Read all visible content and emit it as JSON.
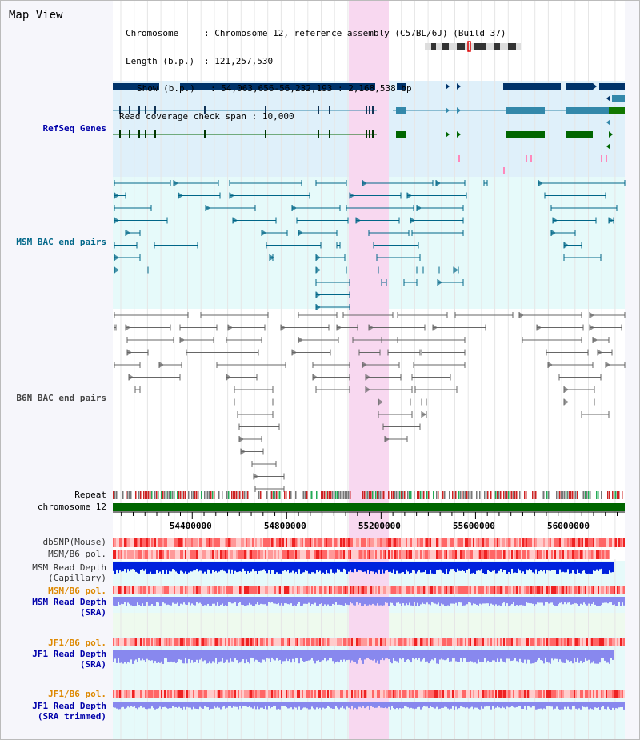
{
  "title": "Map View",
  "info": {
    "chromosome_label": "Chromosome",
    "chromosome_value": "Chromosome 12, reference assembly (C57BL/6J) (Build 37)",
    "length_label": "Length (b.p.)",
    "length_value": "121,257,530",
    "show_label": "Show (b.p.)",
    "show_value": "54,063,656-56,232,193 : 2,168,538 bp",
    "coverage_label": "Read coverage check span",
    "coverage_value": "10,000"
  },
  "tracks": {
    "refseq": "RefSeq Genes",
    "msm_bac": "MSM BAC end pairs",
    "b6n_bac": "B6N BAC end pairs",
    "repeat": "Repeat",
    "chromosome": "chromosome 12",
    "dbsnp": "dbSNP(Mouse)",
    "msm_b6_pol": "MSM/B6 pol.",
    "msm_depth_cap_1": "MSM Read Depth",
    "msm_depth_cap_2": "(Capillary)",
    "msm_b6_pol2": "MSM/B6 pol.",
    "msm_depth_sra_1": "MSM Read Depth",
    "msm_depth_sra_2": "(SRA)",
    "jf1_b6_pol": "JF1/B6 pol.",
    "jf1_depth_sra_1": "JF1 Read Depth",
    "jf1_depth_sra_2": "(SRA)",
    "jf1_b6_pol2": "JF1/B6 pol.",
    "jf1_depth_trim_1": "JF1 Read Depth",
    "jf1_depth_trim_2": "(SRA trimmed)"
  },
  "axis": {
    "ticks": [
      "54400000",
      "54800000",
      "55200000",
      "55600000",
      "56000000"
    ],
    "range": [
      54063656,
      56232193
    ]
  },
  "colors": {
    "refseq_bg": "#dff0fa",
    "msm_bg": "#e6fafa",
    "highlight": "#f8d8f0",
    "gene_navy": "#00336a",
    "gene_teal": "#3388aa",
    "gene_green": "#006600",
    "bac_teal": "#006688",
    "bac_gray": "#666666",
    "chrom_green": "#006600",
    "depth_blue": "#0022dd",
    "depth_lilac": "#8888ee"
  }
}
